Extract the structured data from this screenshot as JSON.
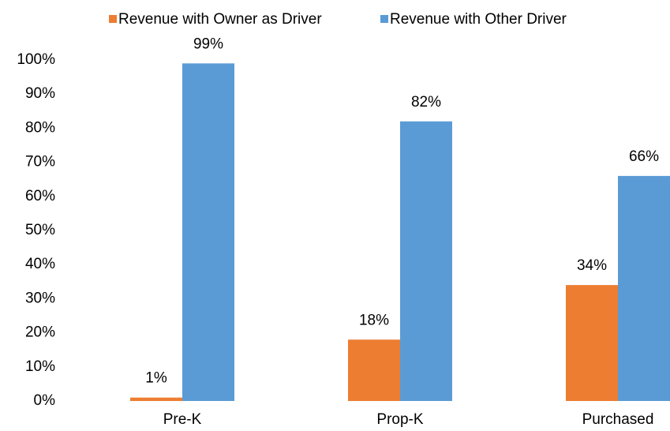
{
  "chart_data": {
    "type": "bar",
    "categories": [
      "Pre-K",
      "Prop-K",
      "Purchased"
    ],
    "series": [
      {
        "name": "Revenue with Owner as Driver",
        "color": "#ed7d31",
        "values": [
          1,
          18,
          34
        ],
        "value_labels": [
          "1%",
          "18%",
          "34%"
        ]
      },
      {
        "name": "Revenue with Other Driver",
        "color": "#5b9bd5",
        "values": [
          99,
          82,
          66
        ],
        "value_labels": [
          "99%",
          "82%",
          "66%"
        ]
      }
    ],
    "ylim": [
      0,
      100
    ],
    "yticks": [
      {
        "value": 0,
        "label": "0%"
      },
      {
        "value": 10,
        "label": "10%"
      },
      {
        "value": 20,
        "label": "20%"
      },
      {
        "value": 30,
        "label": "30%"
      },
      {
        "value": 40,
        "label": "40%"
      },
      {
        "value": 50,
        "label": "50%"
      },
      {
        "value": 60,
        "label": "60%"
      },
      {
        "value": 70,
        "label": "70%"
      },
      {
        "value": 80,
        "label": "80%"
      },
      {
        "value": 90,
        "label": "90%"
      },
      {
        "value": 100,
        "label": "100%"
      }
    ],
    "legend": "top",
    "grid": false
  }
}
